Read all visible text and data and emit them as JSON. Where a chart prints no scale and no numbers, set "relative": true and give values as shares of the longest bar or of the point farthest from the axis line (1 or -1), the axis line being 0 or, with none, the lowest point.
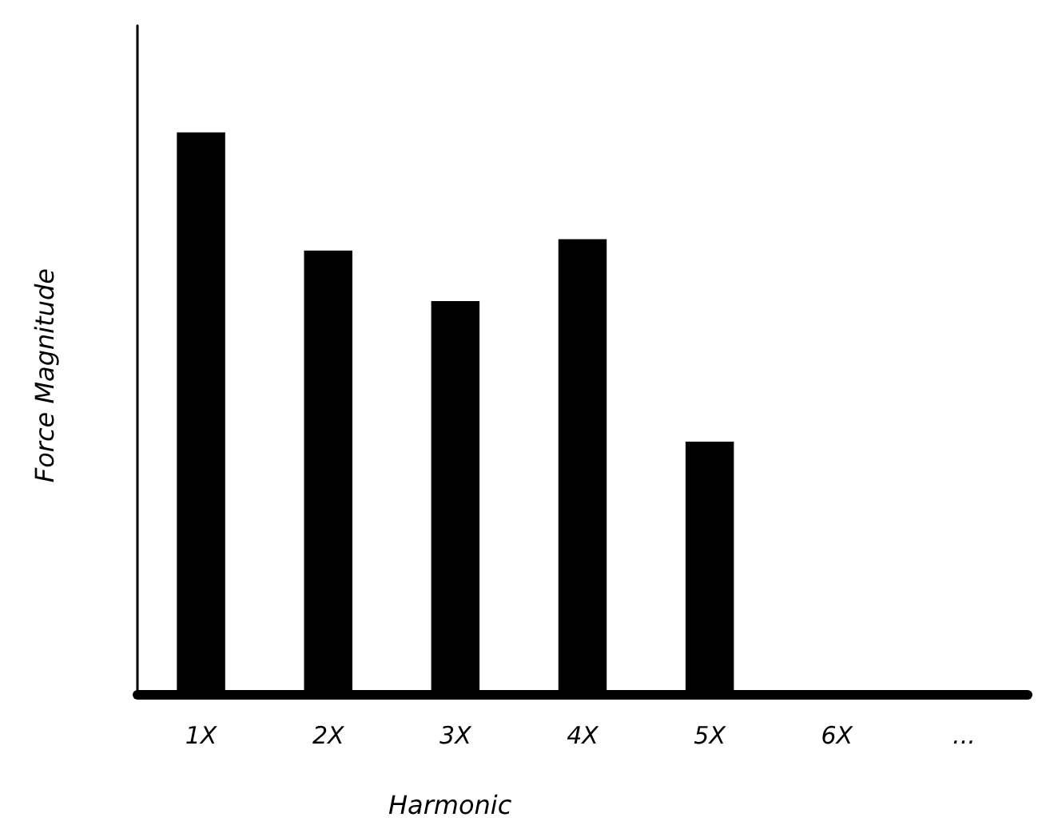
{
  "chart_data": {
    "type": "bar",
    "relative": true,
    "xlabel": "Harmonic",
    "ylabel": "Force Magnitude",
    "categories": [
      "1X",
      "2X",
      "3X",
      "4X",
      "5X",
      "6X",
      "..."
    ],
    "series": [
      {
        "color": "#000000",
        "values": [
          1,
          0.79,
          0.7,
          0.81,
          0.45,
          null,
          null
        ]
      }
    ]
  }
}
